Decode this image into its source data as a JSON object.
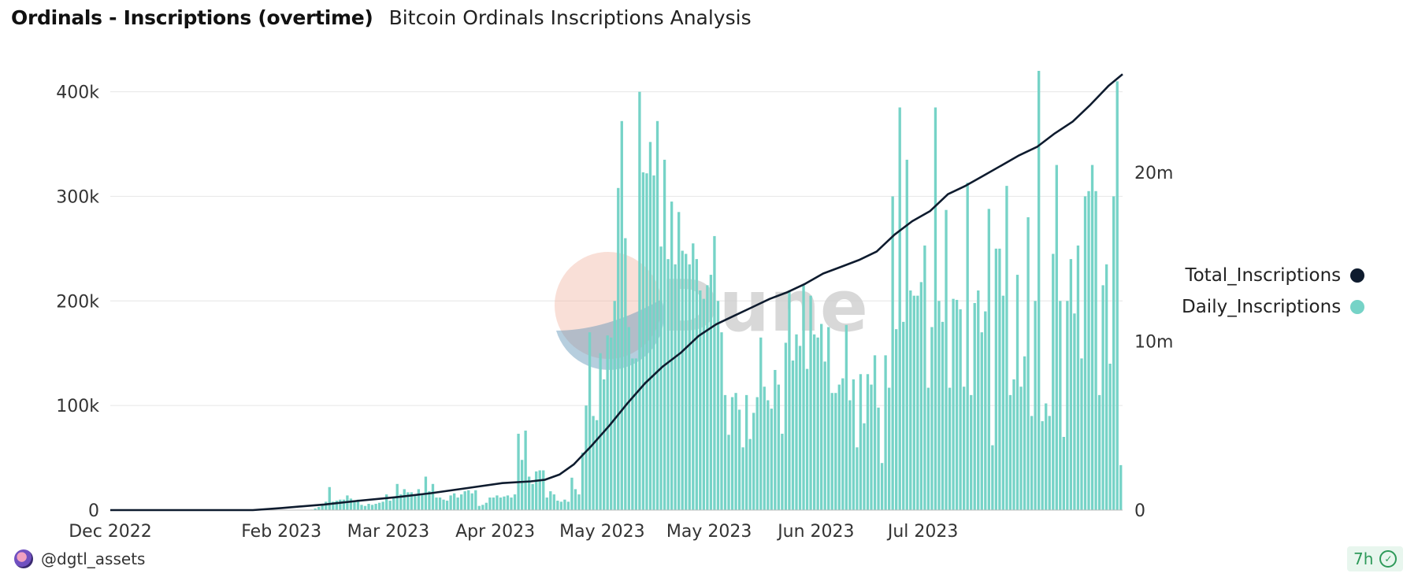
{
  "header": {
    "title": "Ordinals - Inscriptions (overtime)",
    "subtitle": "Bitcoin Ordinals Inscriptions Analysis"
  },
  "footer": {
    "author": "@dgtl_assets",
    "refresh_badge": "7h",
    "badge_icon": "check-circle-icon"
  },
  "watermark": "Dune",
  "colors": {
    "daily": "#76d3c7",
    "total": "#0e1b2e",
    "grid": "#e6e6e6",
    "watermark_circle_top": "#f2b9a6",
    "watermark_circle_bottom": "#5d92b5",
    "watermark_text": "#cfcfcf"
  },
  "chart_data": {
    "type": "bar+line",
    "x_start": "2022-12-14",
    "x_ticks": [
      "Dec 2022",
      "Feb 2023",
      "Mar 2023",
      "Apr 2023",
      "May 2023",
      "May 2023",
      "Jun 2023",
      "Jul 2023"
    ],
    "x_tick_dates": [
      "2022-12-14",
      "2023-01-31",
      "2023-03-02",
      "2023-04-01",
      "2023-05-01",
      "2023-05-31",
      "2023-06-30",
      "2023-07-30"
    ],
    "y_left": {
      "ticks": [
        "0",
        "100k",
        "200k",
        "300k",
        "400k"
      ],
      "tick_values": [
        0,
        100000,
        200000,
        300000,
        400000
      ],
      "ylim": [
        0,
        420000
      ]
    },
    "y_right": {
      "ticks": [
        "0",
        "10m",
        "20m"
      ],
      "tick_values": [
        0,
        10000000,
        20000000
      ],
      "ylim": [
        0,
        26000000
      ]
    },
    "legend": {
      "position": "right",
      "entries": [
        "Total_Inscriptions",
        "Daily_Inscriptions"
      ]
    },
    "series": [
      {
        "name": "Daily_Inscriptions",
        "axis": "left",
        "type": "bar",
        "values": [
          0,
          0,
          0,
          0,
          0,
          0,
          0,
          0,
          0,
          0,
          0,
          0,
          0,
          0,
          0,
          0,
          0,
          0,
          0,
          0,
          0,
          0,
          0,
          0,
          0,
          0,
          0,
          0,
          0,
          0,
          0,
          0,
          0,
          0,
          0,
          0,
          0,
          0,
          0,
          0,
          0,
          0,
          0,
          500,
          1500,
          3000,
          5000,
          8000,
          22000,
          8000,
          9000,
          10000,
          10000,
          14000,
          11000,
          8000,
          10000,
          5000,
          4000,
          6000,
          5000,
          6000,
          7000,
          8000,
          15000,
          9000,
          12000,
          25000,
          15000,
          20000,
          17000,
          17000,
          14000,
          20000,
          15000,
          32000,
          18000,
          25000,
          12000,
          12000,
          10000,
          9000,
          14000,
          16000,
          12000,
          15000,
          18000,
          19000,
          16000,
          19000,
          4000,
          5000,
          7000,
          12000,
          12000,
          14000,
          12000,
          13000,
          14000,
          12000,
          15000,
          73000,
          48000,
          76000,
          32000,
          25000,
          37000,
          38000,
          38000,
          12000,
          18000,
          15000,
          9000,
          8000,
          10000,
          8000,
          31000,
          20000,
          15000,
          55000,
          100000,
          170000,
          90000,
          86000,
          150000,
          125000,
          167000,
          165000,
          200000,
          308000,
          372000,
          260000,
          175000,
          145000,
          145000,
          400000,
          323000,
          322000,
          352000,
          320000,
          372000,
          252000,
          335000,
          240000,
          295000,
          235000,
          285000,
          248000,
          245000,
          235000,
          255000,
          240000,
          210000,
          202000,
          215000,
          225000,
          262000,
          200000,
          170000,
          110000,
          72000,
          108000,
          112000,
          96000,
          60000,
          110000,
          68000,
          93000,
          108000,
          165000,
          118000,
          105000,
          97000,
          134000,
          120000,
          73000,
          160000,
          210000,
          143000,
          168000,
          157000,
          215000,
          135000,
          205000,
          168000,
          165000,
          178000,
          142000,
          175000,
          112000,
          112000,
          120000,
          126000,
          177000,
          105000,
          125000,
          60000,
          130000,
          83000,
          130000,
          120000,
          148000,
          98000,
          45000,
          148000,
          117000,
          300000,
          173000,
          385000,
          180000,
          335000,
          210000,
          205000,
          205000,
          218000,
          253000,
          117000,
          175000,
          385000,
          200000,
          180000,
          287000,
          117000,
          202000,
          201000,
          192000,
          118000,
          313000,
          110000,
          198000,
          210000,
          170000,
          190000,
          288000,
          62000,
          250000,
          250000,
          205000,
          310000,
          110000,
          125000,
          225000,
          118000,
          147000,
          280000,
          90000,
          200000,
          420000,
          85000,
          102000,
          90000,
          245000,
          330000,
          200000,
          70000,
          200000,
          240000,
          188000,
          253000,
          145000,
          300000,
          305000,
          330000,
          305000,
          110000,
          215000,
          235000,
          140000,
          300000,
          410000,
          43000
        ],
        "note_values_count": 280
      },
      {
        "name": "Total_Inscriptions",
        "axis": "right",
        "type": "line",
        "points_days": [
          0,
          40,
          48,
          60,
          70,
          80,
          90,
          100,
          110,
          118,
          122,
          126,
          130,
          135,
          140,
          145,
          150,
          155,
          160,
          165,
          170,
          175,
          180,
          185,
          190,
          195,
          200,
          205,
          210,
          215,
          220,
          225,
          230,
          235,
          240,
          245,
          250,
          255,
          260,
          265,
          270,
          275,
          280,
          284
        ],
        "points_values": [
          0,
          0,
          120000,
          330000,
          560000,
          760000,
          1000000,
          1300000,
          1600000,
          1700000,
          1800000,
          2100000,
          2700000,
          3800000,
          5000000,
          6300000,
          7500000,
          8500000,
          9300000,
          10300000,
          11000000,
          11500000,
          12000000,
          12500000,
          12900000,
          13400000,
          14000000,
          14400000,
          14800000,
          15300000,
          16300000,
          17100000,
          17700000,
          18700000,
          19200000,
          19800000,
          20400000,
          21000000,
          21500000,
          22300000,
          23000000,
          24000000,
          25100000,
          25800000
        ]
      }
    ]
  }
}
